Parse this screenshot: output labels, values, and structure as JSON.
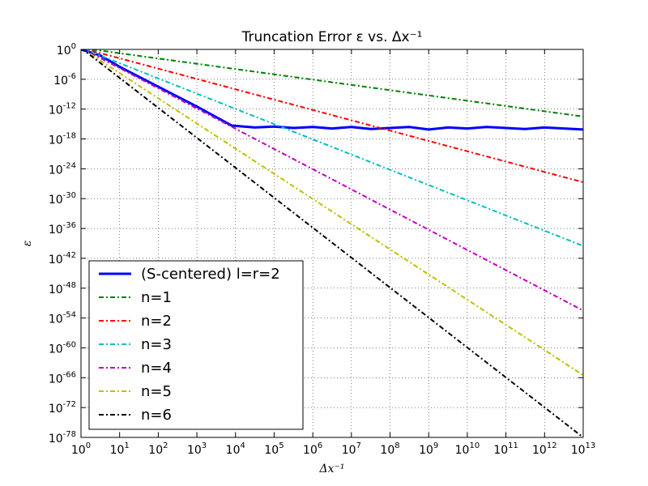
{
  "chart_data": {
    "type": "line",
    "title": "Truncation Error ε vs. Δx⁻¹",
    "xlabel": "Δx⁻¹",
    "ylabel": "ε",
    "xscale": "log",
    "yscale": "log",
    "xlim_exp": [
      0,
      13
    ],
    "ylim_exp": [
      -78,
      0
    ],
    "grid": true,
    "legend_position": "lower-left",
    "x_tick_exponents": [
      0,
      1,
      2,
      3,
      4,
      5,
      6,
      7,
      8,
      9,
      10,
      11,
      12,
      13
    ],
    "y_tick_exponents": [
      0,
      -6,
      -12,
      -18,
      -24,
      -30,
      -36,
      -42,
      -48,
      -54,
      -60,
      -66,
      -72,
      -78
    ],
    "series": [
      {
        "name": "(S-centered) l=r=2",
        "color": "#0000ff",
        "style": "solid",
        "log10_x": [
          0,
          0.5,
          1,
          2,
          3,
          3.9,
          4.5,
          5,
          5.5,
          6,
          6.5,
          7,
          7.5,
          8,
          8.5,
          9,
          9.5,
          10,
          10.5,
          11,
          11.5,
          12,
          12.5,
          13
        ],
        "log10_y": [
          0,
          -1.2,
          -3.5,
          -7.5,
          -11.5,
          -15.3,
          -15.7,
          -15.5,
          -15.8,
          -15.6,
          -15.9,
          -15.6,
          -16.0,
          -15.8,
          -15.6,
          -16.1,
          -15.7,
          -15.9,
          -15.6,
          -15.8,
          -16.0,
          -15.7,
          -15.9,
          -16.1
        ]
      },
      {
        "name": "n=1",
        "color": "#008000",
        "style": "dashdot",
        "log10_x": [
          0,
          13
        ],
        "log10_y": [
          0.3,
          -13.5
        ]
      },
      {
        "name": "n=2",
        "color": "#ff0000",
        "style": "dashdot",
        "log10_x": [
          0,
          13
        ],
        "log10_y": [
          0.3,
          -26.7
        ]
      },
      {
        "name": "n=3",
        "color": "#00bfbf",
        "style": "dashdot",
        "log10_x": [
          0,
          13
        ],
        "log10_y": [
          0.3,
          -39.5
        ]
      },
      {
        "name": "n=4",
        "color": "#bf00bf",
        "style": "dashdot",
        "log10_x": [
          0,
          13
        ],
        "log10_y": [
          0.3,
          -52.5
        ]
      },
      {
        "name": "n=5",
        "color": "#bfbf00",
        "style": "dashdot",
        "log10_x": [
          0,
          13
        ],
        "log10_y": [
          0.3,
          -65.5
        ]
      },
      {
        "name": "n=6",
        "color": "#000000",
        "style": "dashdot",
        "log10_x": [
          0,
          13
        ],
        "log10_y": [
          0.3,
          -78
        ]
      }
    ]
  }
}
